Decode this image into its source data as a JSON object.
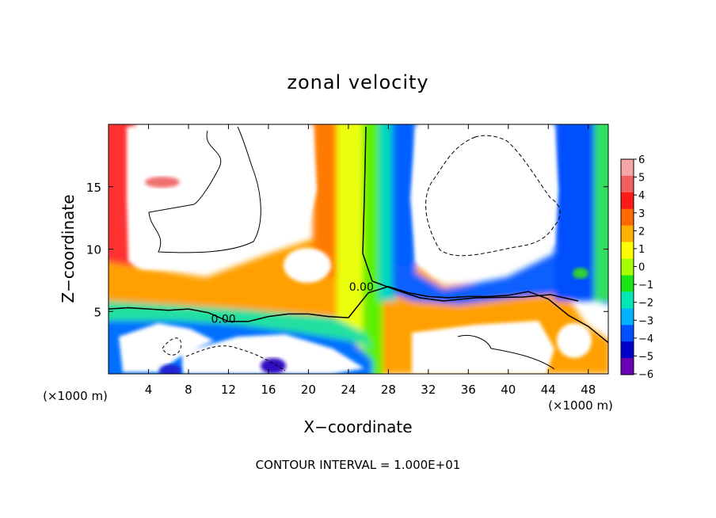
{
  "chart_data": {
    "type": "heatmap",
    "title": "zonal velocity",
    "xlabel": "X−coordinate",
    "ylabel": "Z−coordinate",
    "xunit_left": "(×1000 m)",
    "xunit_right": "(×1000 m)",
    "footer": "CONTOUR INTERVAL = 1.000E+01",
    "xlim": [
      0,
      50
    ],
    "ylim": [
      0,
      20
    ],
    "x_ticks": [
      "4",
      "8",
      "12",
      "16",
      "20",
      "24",
      "28",
      "32",
      "36",
      "40",
      "44",
      "48"
    ],
    "x_tick_values": [
      4,
      8,
      12,
      16,
      20,
      24,
      28,
      32,
      36,
      40,
      44,
      48
    ],
    "y_ticks": [
      "5",
      "10",
      "15"
    ],
    "y_tick_values": [
      5,
      10,
      15
    ],
    "colorbar": {
      "labels": [
        "6",
        "5",
        "4",
        "3",
        "2",
        "1",
        "0",
        "−1",
        "−2",
        "−3",
        "−4",
        "−5",
        "−6"
      ],
      "values": [
        6,
        5,
        4,
        3,
        2,
        1,
        0,
        -1,
        -2,
        -3,
        -4,
        -5,
        -6
      ],
      "colors": [
        "#f4a6a6",
        "#f06060",
        "#ff1a1a",
        "#ff6a00",
        "#ffb000",
        "#ffff00",
        "#a6ff00",
        "#19e619",
        "#00e6b4",
        "#00b4ff",
        "#0050ff",
        "#0000c8",
        "#6a00b4"
      ]
    },
    "contour_labels": [
      {
        "text": "0.00",
        "x": 25.3,
        "z": 7.0
      },
      {
        "text": "0.00",
        "x": 11.5,
        "z": 4.4
      }
    ],
    "zero_contour_x": [
      0,
      2,
      4,
      6,
      8,
      10,
      12,
      14,
      16,
      18,
      20,
      22,
      24,
      26,
      28,
      30,
      32,
      34,
      36,
      38,
      40,
      42,
      44,
      46,
      48,
      50
    ],
    "zero_contour_z": [
      5.2,
      5.3,
      5.2,
      5.1,
      5.2,
      4.9,
      4.2,
      4.2,
      4.6,
      4.8,
      4.8,
      4.6,
      4.5,
      6.5,
      7.0,
      6.5,
      6.2,
      6.1,
      6.2,
      6.2,
      6.3,
      6.6,
      6.0,
      4.7,
      3.8,
      2.5
    ]
  }
}
